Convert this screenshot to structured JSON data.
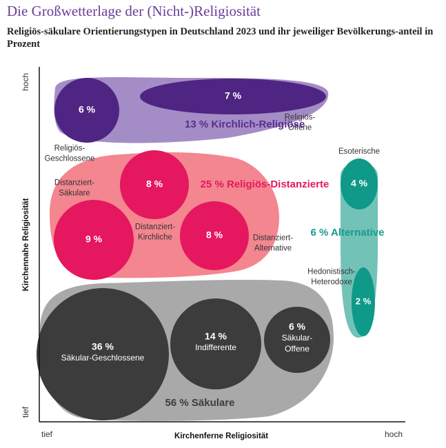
{
  "title": "Die Großwetterlage der (Nicht-)Religiosität",
  "subtitle": "Religiös-säkulare Orientierungstypen in Deutschland 2023 und ihr jeweiliger Bevölkerungs-anteil in Prozent",
  "chart_data": {
    "type": "bubble-diagram",
    "xlabel": "Kirchenferne Religiosität",
    "ylabel": "Kirchennahe Religiosität",
    "x_ticks": [
      "tief",
      "hoch"
    ],
    "y_ticks": [
      "hoch",
      "tief"
    ],
    "groups": [
      {
        "label": "13 % Kirchlich-Religiöse",
        "value": 13,
        "color": "#a48dc6",
        "text_color": "#5a2d8c"
      },
      {
        "label": "25 % Religiös-Distanzierte",
        "value": 25,
        "color": "#f3868f",
        "text_color": "#e5175f"
      },
      {
        "label": "6 % Alternative",
        "value": 6,
        "color": "#72c2b8",
        "text_color": "#1a9a8c"
      },
      {
        "label": "56 % Säkulare",
        "value": 56,
        "color": "#a9a9aa",
        "text_color": "#3c3c3c"
      }
    ],
    "types": [
      {
        "group": "13 % Kirchlich-Religiöse",
        "value": 6,
        "value_label": "6 %",
        "name": "Religiös-Geschlossene",
        "name_lines": [
          "Religiös-",
          "Geschlossene"
        ],
        "color": "#4f2583"
      },
      {
        "group": "13 % Kirchlich-Religiöse",
        "value": 7,
        "value_label": "7 %",
        "name": "Religiös-Offene",
        "name_lines": [
          "Religiös-",
          "Offene"
        ],
        "color": "#4f2583"
      },
      {
        "group": "25 % Religiös-Distanzierte",
        "value": 8,
        "value_label": "8 %",
        "name": "Distanziert-Säkulare",
        "name_lines": [
          "Distanziert-",
          "Säkulare"
        ],
        "color": "#e5175f"
      },
      {
        "group": "25 % Religiös-Distanzierte",
        "value": 9,
        "value_label": "9 %",
        "name": "Distanziert-Kirchliche",
        "name_lines": [
          "Distanziert-",
          "Kirchliche"
        ],
        "color": "#e5175f"
      },
      {
        "group": "25 % Religiös-Distanzierte",
        "value": 8,
        "value_label": "8 %",
        "name": "Distanziert-Alternative",
        "name_lines": [
          "Distanziert-",
          "Alternative"
        ],
        "color": "#e5175f"
      },
      {
        "group": "6 % Alternative",
        "value": 4,
        "value_label": "4 %",
        "name": "Esoterische",
        "name_lines": [
          "Esoterische"
        ],
        "color": "#0f9988"
      },
      {
        "group": "6 % Alternative",
        "value": 2,
        "value_label": "2 %",
        "name": "Hedonistisch-Heterodoxe",
        "name_lines": [
          "Hedonistisch-",
          "Heterodoxe"
        ],
        "color": "#0f9988"
      },
      {
        "group": "56 % Säkulare",
        "value": 36,
        "value_label": "36 %",
        "name": "Säkular-Geschlossene",
        "name_lines": [
          "Säkular-Geschlossene"
        ],
        "color": "#3c3c3d"
      },
      {
        "group": "56 % Säkulare",
        "value": 14,
        "value_label": "14 %",
        "name": "Indifferente",
        "name_lines": [
          "Indifferente"
        ],
        "color": "#3c3c3d"
      },
      {
        "group": "56 % Säkulare",
        "value": 6,
        "value_label": "6 %",
        "name": "Säkular-Offene",
        "name_lines": [
          "Säkular-",
          "Offene"
        ],
        "color": "#3c3c3d"
      }
    ]
  }
}
